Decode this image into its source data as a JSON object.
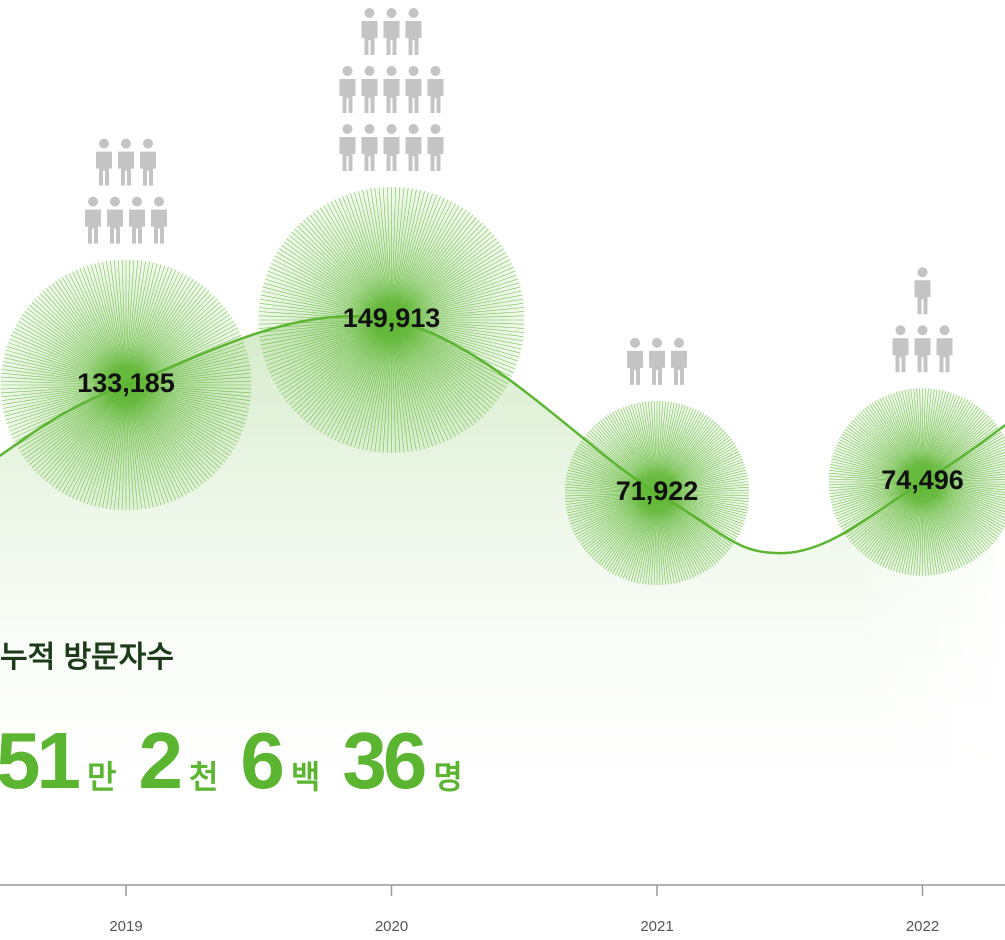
{
  "chart_data": {
    "type": "bubble",
    "categories": [
      "2019",
      "2020",
      "2021",
      "2022"
    ],
    "values": [
      133185,
      149913,
      71922,
      74496
    ],
    "value_labels": [
      "133,185",
      "149,913",
      "71,922",
      "74,496"
    ],
    "color": "#5cb531",
    "icon_rows": [
      [
        3,
        4
      ],
      [
        3,
        5,
        5
      ],
      [
        3
      ],
      [
        1,
        3
      ]
    ],
    "icon_color": "#c4c4c4"
  },
  "total": {
    "label": "누적 방문자수",
    "parts": [
      {
        "number": 51,
        "unit": "만"
      },
      {
        "number": 2,
        "unit": "천"
      },
      {
        "number": 6,
        "unit": "백"
      },
      {
        "number": 36,
        "unit": "명"
      }
    ]
  }
}
